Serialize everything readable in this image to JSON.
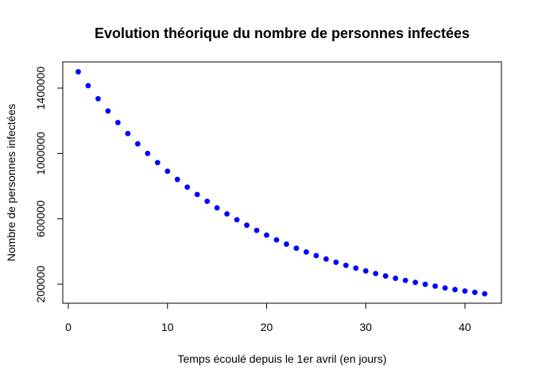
{
  "chart_data": {
    "type": "scatter",
    "title": "Evolution théorique du nombre de personnes infectées",
    "xlabel": "Temps écoulé depuis le 1er avril (en jours)",
    "ylabel": "Nombre de personnes infectées",
    "xlim": [
      0,
      42
    ],
    "ylim": [
      140000,
      1500000
    ],
    "x_ticks": [
      0,
      10,
      20,
      30,
      40
    ],
    "y_ticks": [
      200000,
      600000,
      1000000,
      1400000
    ],
    "grid": false,
    "legend": "none",
    "marker_color": "#0000FF",
    "series": [
      {
        "x": [
          1,
          2,
          3,
          4,
          5,
          6,
          7,
          8,
          9,
          10,
          11,
          12,
          13,
          14,
          15,
          16,
          17,
          18,
          19,
          20,
          21,
          22,
          23,
          24,
          25,
          26,
          27,
          28,
          29,
          30,
          31,
          32,
          33,
          34,
          35,
          36,
          37,
          38,
          39,
          40,
          41,
          42
        ],
        "y": [
          1500000,
          1415000,
          1335000,
          1260000,
          1189000,
          1122000,
          1059000,
          1000000,
          944000,
          891000,
          841000,
          794000,
          749000,
          707000,
          667000,
          630000,
          594000,
          561000,
          529000,
          500000,
          471000,
          445000,
          420000,
          397000,
          375000,
          354000,
          334000,
          315000,
          298000,
          281000,
          265000,
          250000,
          236000,
          223000,
          211000,
          199000,
          188000,
          177000,
          167000,
          158000,
          150000,
          141000
        ]
      }
    ]
  }
}
